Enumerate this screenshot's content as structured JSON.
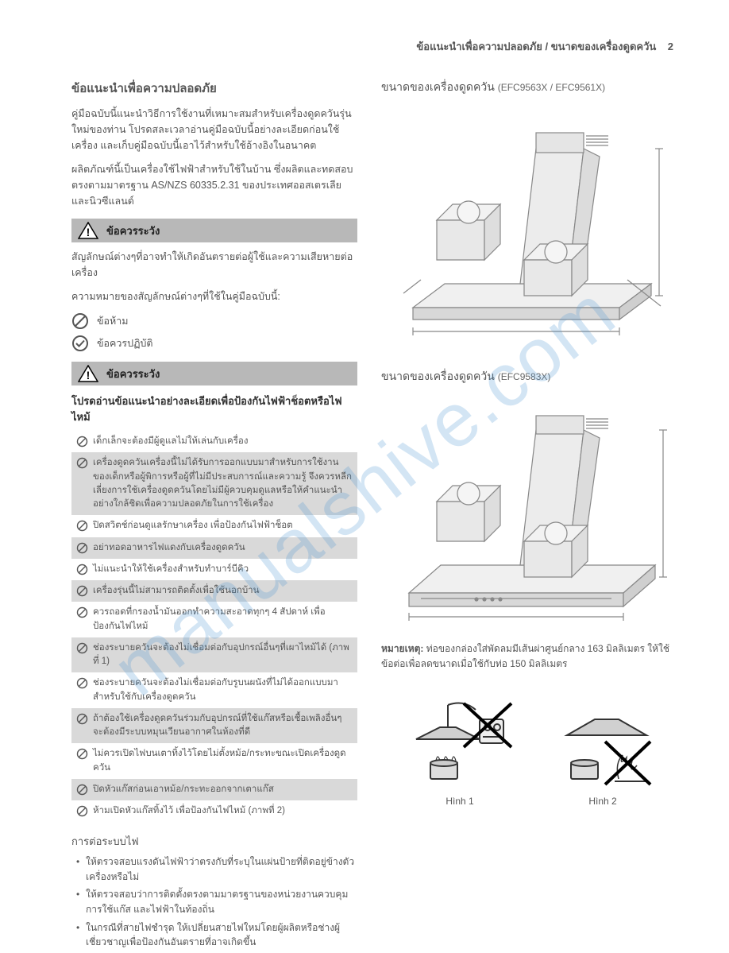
{
  "header": {
    "text": "ข้อแนะนำเพื่อความปลอดภัย / ขนาดของเครื่องดูดควัน",
    "page_num": "2"
  },
  "watermark": "manualshive.com",
  "left": {
    "title": "ข้อแนะนำเพื่อความปลอดภัย",
    "p1": "คู่มือฉบับนี้แนะนำวิธีการใช้งานที่เหมาะสมสำหรับเครื่องดูดควันรุ่นใหม่ของท่าน โปรดสละเวลาอ่านคู่มือฉบับนี้อย่างละเอียดก่อนใช้เครื่อง และเก็บคู่มือฉบับนี้เอาไว้สำหรับใช้อ้างอิงในอนาคต",
    "p2": "ผลิตภัณฑ์นี้เป็นเครื่องใช้ไฟฟ้าสำหรับใช้ในบ้าน ซึ่งผลิตและทดสอบตรงตามมาตรฐาน AS/NZS 60335.2.31 ของประเทศออสเตรเลียและนิวซีแลนด์",
    "caution_label": "ข้อควรระวัง",
    "p3": "สัญลักษณ์ต่างๆที่อาจทำให้เกิดอันตรายต่อผู้ใช้และความเสียหายต่อเครื่อง",
    "p4": "ความหมายของสัญลักษณ์ต่างๆที่ใช้ในคู่มือฉบับนี้:",
    "legend": {
      "prohibit": "ข้อห้าม",
      "must": "ข้อควรปฏิบัติ"
    },
    "read_note": "โปรดอ่านข้อแนะนำอย่างละเอียดเพื่อป้องกันไฟฟ้าช็อตหรือไฟไหม้",
    "items": [
      {
        "text": "เด็กเล็กจะต้องมีผู้ดูแลไม่ให้เล่นกับเครื่อง",
        "shaded": false
      },
      {
        "text": "เครื่องดูดควันเครื่องนี้ไม่ได้รับการออกแบบมาสำหรับการใช้งานของเด็กหรือผู้พิการหรือผู้ที่ไม่มีประสบการณ์และความรู้ จึงควรหลีกเลี่ยงการใช้เครื่องดูดควันโดยไม่มีผู้ควบคุมดูแลหรือให้คำแนะนำอย่างใกล้ชิดเพื่อความปลอดภัยในการใช้เครื่อง",
        "shaded": true
      },
      {
        "text": "ปิดสวิตช์ก่อนดูแลรักษาเครื่อง เพื่อป้องกันไฟฟ้าช็อต",
        "shaded": false
      },
      {
        "text": "อย่าทอดอาหารไฟแดงกับเครื่องดูดควัน",
        "shaded": true
      },
      {
        "text": "ไม่แนะนำให้ใช้เครื่องสำหรับทำบาร์บีคิว",
        "shaded": false
      },
      {
        "text": "เครื่องรุ่นนี้ไม่สามารถติดตั้งเพื่อใช้นอกบ้าน",
        "shaded": true
      },
      {
        "text": "ควรถอดที่กรองน้ำมันออกทำความสะอาดทุกๆ 4 สัปดาห์ เพื่อป้องกันไฟไหม้",
        "shaded": false
      },
      {
        "text": "ช่องระบายควันจะต้องไม่เชื่อมต่อกับอุปกรณ์อื่นๆที่เผาไหม้ได้ (ภาพที่ 1)",
        "shaded": true
      },
      {
        "text": "ช่องระบายควันจะต้องไม่เชื่อมต่อกับรูบนผนังที่ไม่ได้ออกแบบมาสำหรับใช้กับเครื่องดูดควัน",
        "shaded": false
      },
      {
        "text": "ถ้าต้องใช้เครื่องดูดควันร่วมกับอุปกรณ์ที่ใช้แก๊สหรือเชื้อเพลิงอื่นๆ จะต้องมีระบบหมุนเวียนอากาศในห้องที่ดี",
        "shaded": true
      },
      {
        "text": "ไม่ควรเปิดไฟบนเตาทิ้งไว้โดยไม่ตั้งหม้อ/กระทะขณะเปิดเครื่องดูดควัน",
        "shaded": false
      },
      {
        "text": "ปิดหัวแก๊สก่อนเอาหม้อ/กระทะออกจากเตาแก๊ส",
        "shaded": true
      },
      {
        "text": "ห้ามเปิดหัวแก๊สทิ้งไว้ เพื่อป้องกันไฟไหม้ (ภาพที่ 2)",
        "shaded": false
      }
    ],
    "electrical_heading": "การต่อระบบไฟ",
    "electrical_bullets": [
      "ให้ตรวจสอบแรงดันไฟฟ้าว่าตรงกับที่ระบุในแผ่นป้ายที่ติดอยู่ข้างตัวเครื่องหรือไม่",
      "ให้ตรวจสอบว่าการติดตั้งตรงตามมาตรฐานของหน่วยงานควบคุมการใช้แก๊ส และไฟฟ้าในท้องถิ่น",
      "ในกรณีที่สายไฟชำรุด ให้เปลี่ยนสายไฟใหม่โดยผู้ผลิตหรือช่างผู้เชี่ยวชาญเพื่อป้องกันอันตรายที่อาจเกิดขึ้น"
    ]
  },
  "right": {
    "dim1_title": "ขนาดของเครื่องดูดควัน",
    "dim1_models": "(EFC9563X / EFC9561X)",
    "dim2_title": "ขนาดของเครื่องดูดควัน",
    "dim2_models": "(EFC9583X)",
    "note_label": "หมายเหตุ:",
    "note_text": "ท่อของกล่องใส่พัดลมมีเส้นผ่าศูนย์กลาง 163 มิลลิเมตร ให้ใช้ข้อต่อเพื่อลดขนาดเมื่อใช้กับท่อ 150 มิลลิเมตร",
    "fig1_label": "Hình 1",
    "fig2_label": "Hình 2"
  },
  "colors": {
    "text": "#555555",
    "shaded_bg": "#d9d9d9",
    "caution_bg": "#b8b8b8",
    "watermark": "rgba(80,150,210,0.25)",
    "diagram_stroke": "#888888",
    "diagram_fill": "#e8e8e8"
  }
}
